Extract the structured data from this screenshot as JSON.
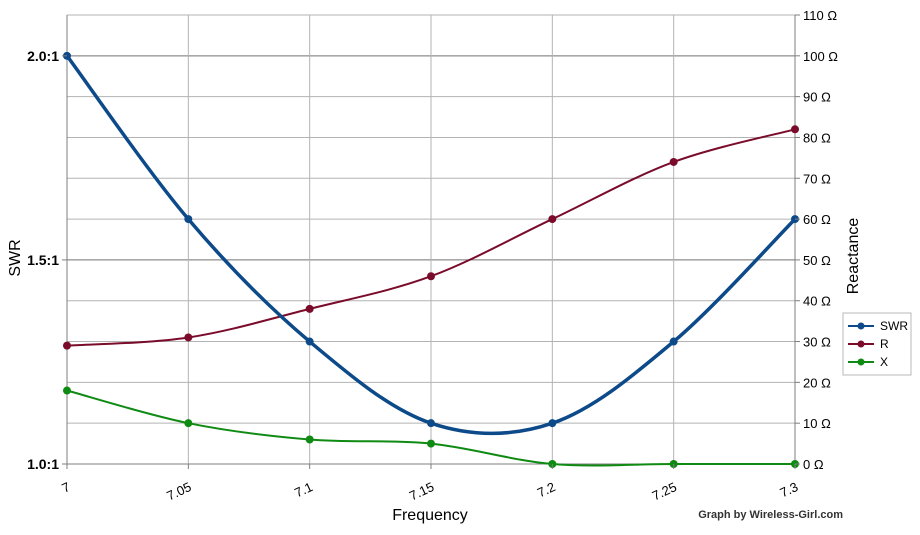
{
  "chart_data": {
    "type": "line",
    "xlabel": "Frequency",
    "ylabel_left": "SWR",
    "ylabel_right": "Reactance",
    "x": [
      7,
      7.05,
      7.1,
      7.15,
      7.2,
      7.25,
      7.3
    ],
    "x_tick_labels": [
      "7",
      "7.05",
      "7.1",
      "7.15",
      "7.2",
      "7.25",
      "7.3"
    ],
    "y_left": {
      "lim": [
        1.0,
        2.1
      ],
      "ticks": [
        1.0,
        1.5,
        2.0
      ],
      "tick_labels": [
        "1.0:1",
        "1.5:1",
        "2.0:1"
      ]
    },
    "y_right": {
      "lim": [
        0,
        110
      ],
      "ticks": [
        0,
        10,
        20,
        30,
        40,
        50,
        60,
        70,
        80,
        90,
        100,
        110
      ],
      "tick_labels": [
        "0 Ω",
        "10 Ω",
        "20 Ω",
        "30 Ω",
        "40 Ω",
        "50 Ω",
        "60 Ω",
        "70 Ω",
        "80 Ω",
        "90 Ω",
        "100 Ω",
        "110 Ω"
      ]
    },
    "series": [
      {
        "name": "SWR",
        "axis": "left",
        "color": "#0d4a8a",
        "values": [
          2.0,
          1.6,
          1.3,
          1.1,
          1.1,
          1.3,
          1.6
        ]
      },
      {
        "name": "R",
        "axis": "right",
        "color": "#7a0b2a",
        "values": [
          29,
          31,
          38,
          46,
          60,
          74,
          82
        ]
      },
      {
        "name": "X",
        "axis": "right",
        "color": "#0f8a12",
        "values": [
          18,
          10,
          6,
          5,
          0,
          0,
          0
        ]
      }
    ],
    "grid": true,
    "legend_position": "right",
    "credit": "Graph by Wireless-Girl.com"
  }
}
